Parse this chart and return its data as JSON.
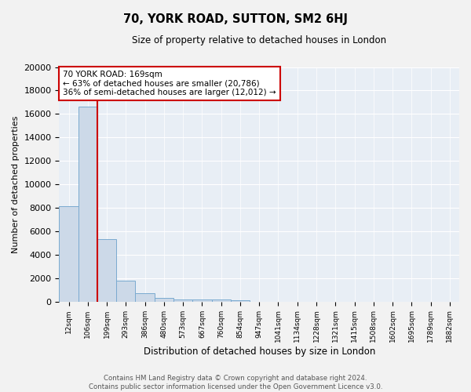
{
  "title": "70, YORK ROAD, SUTTON, SM2 6HJ",
  "subtitle": "Size of property relative to detached houses in London",
  "xlabel": "Distribution of detached houses by size in London",
  "ylabel": "Number of detached properties",
  "bar_color": "#ccd9e8",
  "bar_edge_color": "#7aaad0",
  "background_color": "#e8eef5",
  "categories": [
    "12sqm",
    "106sqm",
    "199sqm",
    "293sqm",
    "386sqm",
    "480sqm",
    "573sqm",
    "667sqm",
    "760sqm",
    "854sqm",
    "947sqm",
    "1041sqm",
    "1134sqm",
    "1228sqm",
    "1321sqm",
    "1415sqm",
    "1508sqm",
    "1602sqm",
    "1695sqm",
    "1789sqm",
    "1882sqm"
  ],
  "values": [
    8100,
    16600,
    5300,
    1750,
    700,
    300,
    200,
    175,
    150,
    100,
    0,
    0,
    0,
    0,
    0,
    0,
    0,
    0,
    0,
    0,
    0
  ],
  "ylim": [
    0,
    20000
  ],
  "yticks": [
    0,
    2000,
    4000,
    6000,
    8000,
    10000,
    12000,
    14000,
    16000,
    18000,
    20000
  ],
  "red_line_after_index": 1,
  "annotation_text": "70 YORK ROAD: 169sqm\n← 63% of detached houses are smaller (20,786)\n36% of semi-detached houses are larger (12,012) →",
  "annotation_box_color": "#ffffff",
  "annotation_border_color": "#cc0000",
  "footer_line1": "Contains HM Land Registry data © Crown copyright and database right 2024.",
  "footer_line2": "Contains public sector information licensed under the Open Government Licence v3.0.",
  "grid_color": "#d0d8e4",
  "white_grid": "#ffffff"
}
